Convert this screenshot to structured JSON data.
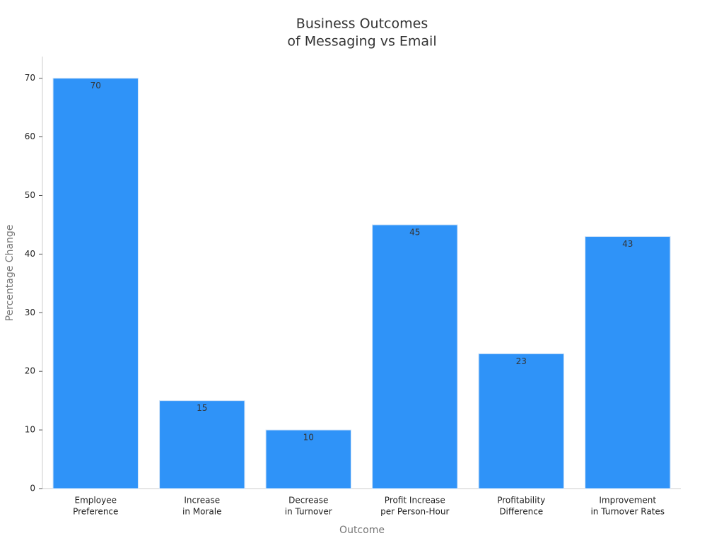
{
  "chart_data": {
    "type": "bar",
    "title": [
      "Business Outcomes",
      "of Messaging vs Email"
    ],
    "x_label": "Outcome",
    "y_label": "Percentage Change",
    "categories": [
      [
        "Employee",
        "Preference"
      ],
      [
        "Increase",
        "in Morale"
      ],
      [
        "Decrease",
        "in Turnover"
      ],
      [
        "Profit Increase",
        "per Person-Hour"
      ],
      [
        "Profitability",
        "Difference"
      ],
      [
        "Improvement",
        "in Turnover Rates"
      ]
    ],
    "values": [
      70,
      15,
      10,
      45,
      23,
      43
    ],
    "color": "#2f93f8",
    "ylim": [
      0,
      73.7
    ],
    "yticks": [
      0,
      10,
      20,
      30,
      40,
      50,
      60,
      70
    ],
    "grid": false
  }
}
